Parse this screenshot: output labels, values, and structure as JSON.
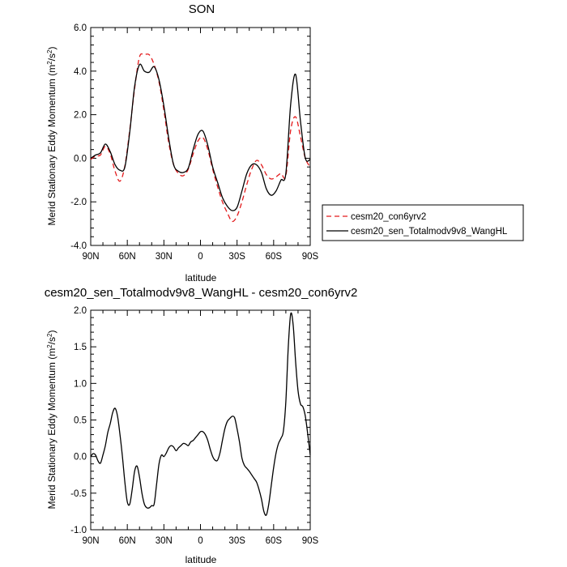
{
  "chart_data": [
    {
      "type": "line",
      "title": "SON",
      "xlabel": "latitude",
      "ylabel": "Merid Stationary Eddy Momentum (m",
      "ylabel_unit_sup": "2",
      "ylabel_mid": "/s",
      "ylabel_unit_sup2": "2",
      "ylabel_end": ")",
      "xlim": [
        90,
        -90
      ],
      "ylim": [
        -4,
        6
      ],
      "x_ticks": [
        90,
        60,
        30,
        0,
        -30,
        -60,
        -90
      ],
      "x_tick_labels": [
        "90N",
        "60N",
        "30N",
        "0",
        "30S",
        "60S",
        "90S"
      ],
      "y_ticks": [
        -4,
        -2,
        0,
        2,
        4,
        6
      ],
      "y_tick_labels": [
        "-4.0",
        "-2.0",
        "0.0",
        "2.0",
        "4.0",
        "6.0"
      ],
      "legend_position": "right",
      "x": [
        90,
        86,
        82,
        78,
        74,
        70,
        66,
        62,
        58,
        54,
        50,
        46,
        42,
        38,
        34,
        30,
        26,
        22,
        18,
        14,
        10,
        6,
        2,
        -2,
        -6,
        -10,
        -14,
        -18,
        -22,
        -26,
        -30,
        -34,
        -38,
        -42,
        -46,
        -50,
        -54,
        -58,
        -62,
        -66,
        -70,
        -74,
        -78,
        -82,
        -86,
        -90
      ],
      "series": [
        {
          "name": "cesm20_con6yrv2",
          "color": "#e31a1c",
          "dash": "dashed",
          "values": [
            -0.05,
            0.1,
            0.15,
            0.55,
            0.2,
            -0.6,
            -1.05,
            -0.35,
            1.3,
            3.2,
            4.65,
            4.75,
            4.75,
            4.3,
            3.5,
            2.2,
            0.7,
            -0.3,
            -0.7,
            -0.8,
            -0.5,
            0.2,
            0.8,
            0.95,
            0.4,
            -0.5,
            -1.3,
            -2.0,
            -2.5,
            -2.9,
            -2.65,
            -2.0,
            -1.2,
            -0.5,
            -0.1,
            -0.3,
            -0.75,
            -0.95,
            -0.85,
            -0.7,
            -0.8,
            1.3,
            1.9,
            1.0,
            0.0,
            -0.4
          ]
        },
        {
          "name": "cesm20_sen_Totalmodv9v8_WangHL",
          "color": "#000000",
          "dash": "solid",
          "values": [
            0.0,
            0.15,
            0.25,
            0.65,
            0.3,
            -0.3,
            -0.55,
            -0.4,
            1.2,
            3.3,
            4.3,
            4.0,
            3.95,
            4.2,
            3.6,
            2.4,
            0.9,
            -0.3,
            -0.6,
            -0.65,
            -0.45,
            0.4,
            1.1,
            1.25,
            0.6,
            -0.4,
            -1.1,
            -1.8,
            -2.2,
            -2.4,
            -2.25,
            -1.5,
            -0.7,
            -0.3,
            -0.3,
            -0.65,
            -1.4,
            -1.7,
            -1.5,
            -1.0,
            -0.7,
            2.5,
            3.85,
            1.7,
            0.0,
            -0.05
          ]
        }
      ]
    },
    {
      "type": "line",
      "title": "cesm20_sen_Totalmodv9v8_WangHL - cesm20_con6yrv2",
      "xlabel": "latitude",
      "ylabel": "Merid Stationary Eddy Momentum (m",
      "ylabel_unit_sup": "2",
      "ylabel_mid": "/s",
      "ylabel_unit_sup2": "2",
      "ylabel_end": ")",
      "xlim": [
        90,
        -90
      ],
      "ylim": [
        -1,
        2
      ],
      "x_ticks": [
        90,
        60,
        30,
        0,
        -30,
        -60,
        -90
      ],
      "x_tick_labels": [
        "90N",
        "60N",
        "30N",
        "0",
        "30S",
        "60S",
        "90S"
      ],
      "y_ticks": [
        -1,
        -0.5,
        0,
        0.5,
        1,
        1.5,
        2
      ],
      "y_tick_labels": [
        "-1.0",
        "-0.5",
        "0.0",
        "0.5",
        "1.0",
        "1.5",
        "2.0"
      ],
      "x": [
        90,
        88,
        86,
        84,
        82,
        80,
        78,
        76,
        74,
        72,
        70,
        68,
        66,
        64,
        62,
        60,
        58,
        56,
        54,
        52,
        50,
        48,
        46,
        44,
        42,
        40,
        38,
        36,
        34,
        32,
        30,
        28,
        26,
        24,
        22,
        20,
        18,
        16,
        14,
        12,
        10,
        8,
        6,
        4,
        2,
        0,
        -2,
        -4,
        -6,
        -8,
        -10,
        -12,
        -14,
        -16,
        -18,
        -20,
        -22,
        -24,
        -26,
        -28,
        -30,
        -32,
        -34,
        -36,
        -38,
        -40,
        -42,
        -44,
        -46,
        -48,
        -50,
        -52,
        -54,
        -56,
        -58,
        -60,
        -62,
        -64,
        -66,
        -68,
        -70,
        -72,
        -74,
        -76,
        -78,
        -80,
        -82,
        -84,
        -86,
        -88,
        -90
      ],
      "series": [
        {
          "name": "cesm20_sen_Totalmodv9v8_WangHL - cesm20_con6yrv2",
          "color": "#000000",
          "dash": "solid",
          "values": [
            0.0,
            0.04,
            0.02,
            -0.06,
            -0.09,
            0.02,
            0.15,
            0.33,
            0.45,
            0.6,
            0.66,
            0.55,
            0.3,
            0.0,
            -0.35,
            -0.62,
            -0.65,
            -0.45,
            -0.2,
            -0.13,
            -0.28,
            -0.5,
            -0.65,
            -0.7,
            -0.7,
            -0.67,
            -0.65,
            -0.38,
            -0.1,
            0.02,
            0.0,
            0.05,
            0.12,
            0.15,
            0.13,
            0.08,
            0.12,
            0.15,
            0.18,
            0.17,
            0.15,
            0.2,
            0.22,
            0.26,
            0.3,
            0.34,
            0.34,
            0.3,
            0.22,
            0.1,
            0.0,
            -0.05,
            -0.05,
            0.05,
            0.22,
            0.38,
            0.48,
            0.52,
            0.55,
            0.53,
            0.38,
            0.2,
            -0.02,
            -0.12,
            -0.16,
            -0.2,
            -0.25,
            -0.3,
            -0.35,
            -0.45,
            -0.58,
            -0.75,
            -0.8,
            -0.65,
            -0.4,
            -0.15,
            0.05,
            0.18,
            0.25,
            0.35,
            0.75,
            1.5,
            1.95,
            1.8,
            1.3,
            0.9,
            0.72,
            0.68,
            0.55,
            0.3,
            0.02
          ]
        }
      ]
    }
  ]
}
